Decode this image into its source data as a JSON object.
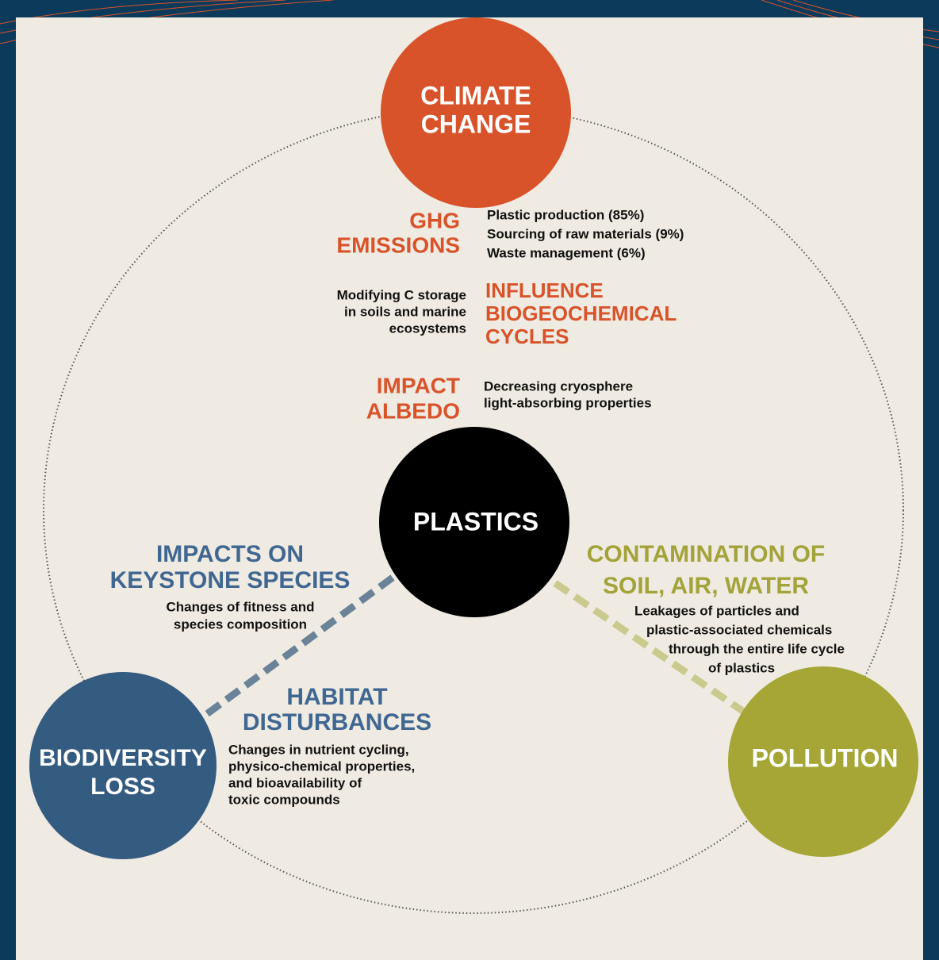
{
  "nodes": [
    {
      "title": [
        "CLIMATE",
        "CHANGE"
      ]
    },
    {
      "title": [
        "PLASTICS"
      ]
    },
    {
      "title": [
        "BIODIVERSITY",
        "LOSS"
      ]
    },
    {
      "title": [
        "POLLUTION"
      ]
    }
  ],
  "links": [
    {
      "label": [
        "GHG",
        "EMISSIONS"
      ],
      "detail": [
        "Plastic production (85%)",
        "Sourcing of raw materials (9%)",
        "Waste management (6%)"
      ]
    },
    {
      "label": [
        "INFLUENCE",
        "BIOGEOCHEMICAL",
        "CYCLES"
      ],
      "detail": [
        "Modifying C storage",
        "in soils and marine",
        "ecosystems"
      ]
    },
    {
      "label": [
        "IMPACT",
        "ALBEDO"
      ],
      "detail": [
        "Decreasing cryosphere",
        "light-absorbing properties"
      ]
    },
    {
      "label": [
        "IMPACTS ON",
        "KEYSTONE SPECIES"
      ],
      "detail": [
        "Changes of fitness and",
        "species composition"
      ]
    },
    {
      "label": [
        "HABITAT",
        "DISTURBANCES"
      ],
      "detail": [
        "Changes in nutrient cycling,",
        "physico-chemical properties,",
        "and bioavailability of",
        "toxic compounds"
      ]
    },
    {
      "label": [
        "CONTAMINATION OF",
        "SOIL, AIR, WATER"
      ],
      "detail": [
        "Leakages of particles and",
        "plastic-associated chemicals",
        "through the entire life cycle",
        "of plastics"
      ]
    }
  ]
}
